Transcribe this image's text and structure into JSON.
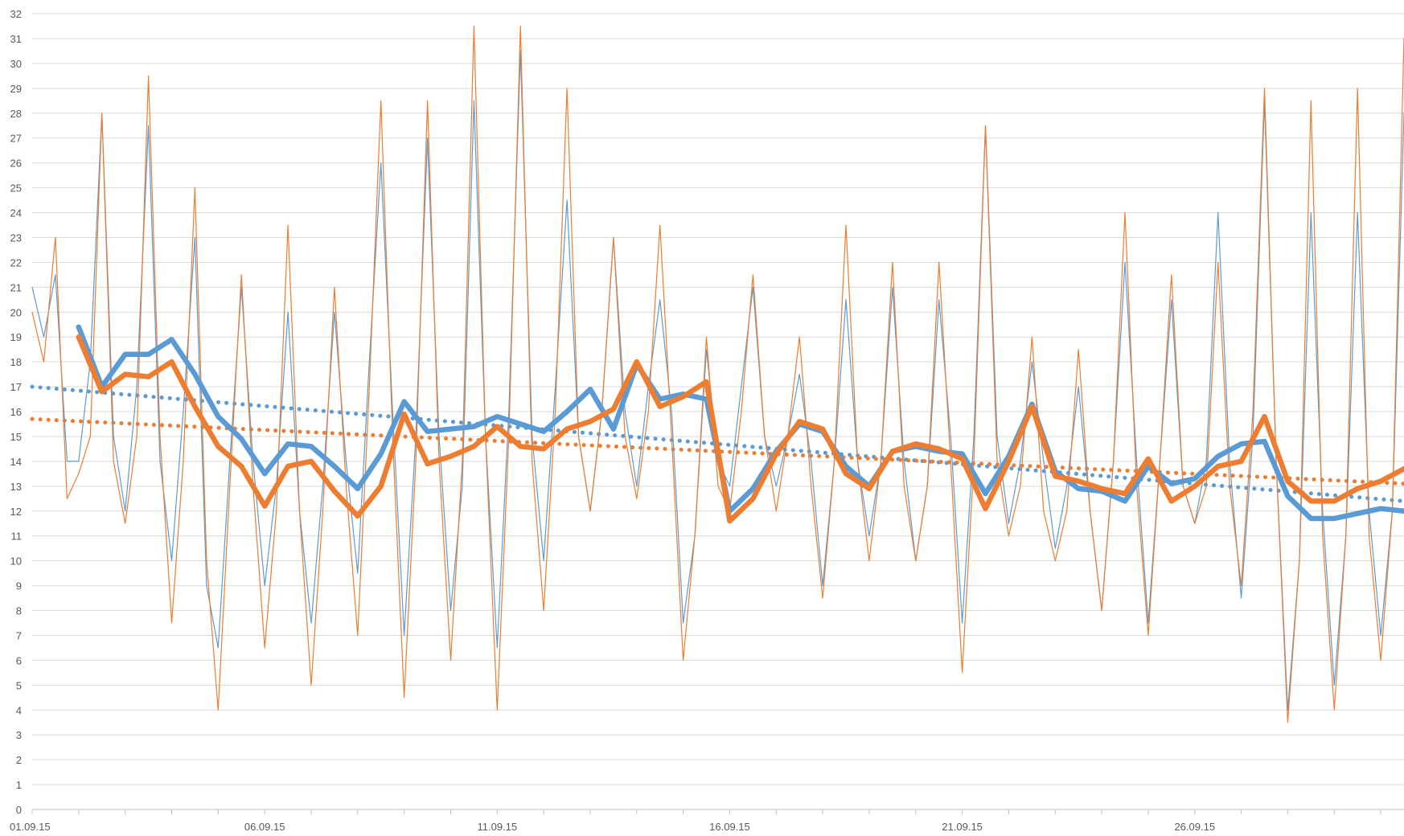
{
  "chart_data": {
    "type": "line",
    "title": "",
    "xlabel": "",
    "ylabel": "",
    "ylim": [
      0,
      32
    ],
    "y_ticks": [
      0,
      1,
      2,
      3,
      4,
      5,
      6,
      7,
      8,
      9,
      10,
      11,
      12,
      13,
      14,
      15,
      16,
      17,
      18,
      19,
      20,
      21,
      22,
      23,
      24,
      25,
      26,
      27,
      28,
      29,
      30,
      31,
      32
    ],
    "y_tick_labels": [
      "0",
      "1",
      "2",
      "3",
      "4",
      "5",
      "6",
      "7",
      "8",
      "9",
      "10",
      "11",
      "12",
      "13",
      "14",
      "15",
      "16",
      "17",
      "18",
      "19",
      "20",
      "21",
      "22",
      "23",
      "24",
      "25",
      "26",
      "27",
      "28",
      "29",
      "30",
      "31",
      "32"
    ],
    "xlim": [
      "01.09.15 00:00",
      "30.09.15 12:00"
    ],
    "x_tick_labels": [
      {
        "date": "01.09.15",
        "label": "01.09.15"
      },
      {
        "date": "06.09.15",
        "label": "06.09.15"
      },
      {
        "date": "11.09.15",
        "label": "11.09.15"
      },
      {
        "date": "16.09.15",
        "label": "16.09.15"
      },
      {
        "date": "21.09.15",
        "label": "21.09.15"
      },
      {
        "date": "26.09.15",
        "label": "26.09.15"
      }
    ],
    "grid": "horizontal",
    "legend": "none",
    "colors": {
      "blue": "#5b9bd5",
      "orange": "#ed7d31"
    },
    "series": [
      {
        "style": "thin",
        "color": "#5b9bd5",
        "x": [
          "01.09.15 00:00",
          "01.09.15 06:00",
          "01.09.15 12:00",
          "01.09.15 18:00",
          "02.09.15 00:00",
          "02.09.15 06:00",
          "02.09.15 12:00",
          "02.09.15 18:00",
          "03.09.15 00:00",
          "03.09.15 06:00",
          "03.09.15 12:00",
          "03.09.15 18:00",
          "04.09.15 00:00",
          "04.09.15 06:00",
          "04.09.15 12:00",
          "04.09.15 18:00",
          "05.09.15 00:00",
          "05.09.15 06:00",
          "05.09.15 12:00",
          "05.09.15 18:00",
          "06.09.15 00:00",
          "06.09.15 06:00",
          "06.09.15 12:00",
          "06.09.15 18:00",
          "07.09.15 00:00",
          "07.09.15 06:00",
          "07.09.15 12:00",
          "07.09.15 18:00",
          "08.09.15 00:00",
          "08.09.15 06:00",
          "08.09.15 12:00",
          "08.09.15 18:00",
          "09.09.15 00:00",
          "09.09.15 06:00",
          "09.09.15 12:00",
          "09.09.15 18:00",
          "10.09.15 00:00",
          "10.09.15 06:00",
          "10.09.15 12:00",
          "10.09.15 18:00",
          "11.09.15 00:00",
          "11.09.15 06:00",
          "11.09.15 12:00",
          "11.09.15 18:00",
          "12.09.15 00:00",
          "12.09.15 06:00",
          "12.09.15 12:00",
          "12.09.15 18:00",
          "13.09.15 00:00",
          "13.09.15 06:00",
          "13.09.15 12:00",
          "13.09.15 18:00",
          "14.09.15 00:00",
          "14.09.15 06:00",
          "14.09.15 12:00",
          "14.09.15 18:00",
          "15.09.15 00:00",
          "15.09.15 06:00",
          "15.09.15 12:00",
          "15.09.15 18:00",
          "16.09.15 00:00",
          "16.09.15 06:00",
          "16.09.15 12:00",
          "16.09.15 18:00",
          "17.09.15 00:00",
          "17.09.15 06:00",
          "17.09.15 12:00",
          "17.09.15 18:00",
          "18.09.15 00:00",
          "18.09.15 06:00",
          "18.09.15 12:00",
          "18.09.15 18:00",
          "19.09.15 00:00",
          "19.09.15 06:00",
          "19.09.15 12:00",
          "19.09.15 18:00",
          "20.09.15 00:00",
          "20.09.15 06:00",
          "20.09.15 12:00",
          "20.09.15 18:00",
          "21.09.15 00:00",
          "21.09.15 06:00",
          "21.09.15 12:00",
          "21.09.15 18:00",
          "22.09.15 00:00",
          "22.09.15 06:00",
          "22.09.15 12:00",
          "22.09.15 18:00",
          "23.09.15 00:00",
          "23.09.15 06:00",
          "23.09.15 12:00",
          "23.09.15 18:00",
          "24.09.15 00:00",
          "24.09.15 06:00",
          "24.09.15 12:00",
          "24.09.15 18:00",
          "25.09.15 00:00",
          "25.09.15 06:00",
          "25.09.15 12:00",
          "25.09.15 18:00",
          "26.09.15 00:00",
          "26.09.15 06:00",
          "26.09.15 12:00",
          "26.09.15 18:00",
          "27.09.15 00:00",
          "27.09.15 06:00",
          "27.09.15 12:00",
          "27.09.15 18:00",
          "28.09.15 00:00",
          "28.09.15 06:00",
          "28.09.15 12:00",
          "28.09.15 18:00",
          "29.09.15 00:00",
          "29.09.15 06:00",
          "29.09.15 12:00",
          "29.09.15 18:00",
          "30.09.15 00:00",
          "30.09.15 06:00",
          "30.09.15 12:00"
        ],
        "y": [
          21,
          19,
          21.5,
          14,
          14,
          18,
          28,
          15,
          12,
          17,
          27.5,
          14,
          10,
          16,
          23,
          9,
          6.5,
          14,
          21,
          14,
          9,
          13,
          20,
          12,
          7.5,
          13,
          20,
          14,
          9.5,
          18,
          26,
          16,
          7,
          15,
          27,
          15,
          8,
          13,
          28.5,
          15,
          6.5,
          16,
          30.5,
          15,
          10,
          17,
          24.5,
          15,
          12,
          16,
          23,
          16,
          13,
          17,
          20.5,
          16,
          7.5,
          11,
          18.5,
          14,
          13,
          17,
          21,
          15,
          13,
          15,
          17.5,
          14,
          9,
          14,
          20.5,
          14,
          11,
          14,
          21,
          14,
          10,
          13,
          20.5,
          15,
          7.5,
          15,
          27.5,
          15,
          11.5,
          14,
          18,
          14,
          10.5,
          13,
          17,
          12,
          8,
          14,
          22,
          14,
          7.5,
          14,
          20.5,
          13,
          11.5,
          14,
          24,
          14,
          8.5,
          15,
          28.5,
          14,
          4,
          10,
          24,
          12,
          5,
          11,
          24,
          12,
          7,
          12,
          28
        ]
      },
      {
        "style": "thin",
        "color": "#ed7d31",
        "x": [
          "01.09.15 00:00",
          "01.09.15 06:00",
          "01.09.15 12:00",
          "01.09.15 18:00",
          "02.09.15 00:00",
          "02.09.15 06:00",
          "02.09.15 12:00",
          "02.09.15 18:00",
          "03.09.15 00:00",
          "03.09.15 06:00",
          "03.09.15 12:00",
          "03.09.15 18:00",
          "04.09.15 00:00",
          "04.09.15 06:00",
          "04.09.15 12:00",
          "04.09.15 18:00",
          "05.09.15 00:00",
          "05.09.15 06:00",
          "05.09.15 12:00",
          "05.09.15 18:00",
          "06.09.15 00:00",
          "06.09.15 06:00",
          "06.09.15 12:00",
          "06.09.15 18:00",
          "07.09.15 00:00",
          "07.09.15 06:00",
          "07.09.15 12:00",
          "07.09.15 18:00",
          "08.09.15 00:00",
          "08.09.15 06:00",
          "08.09.15 12:00",
          "08.09.15 18:00",
          "09.09.15 00:00",
          "09.09.15 06:00",
          "09.09.15 12:00",
          "09.09.15 18:00",
          "10.09.15 00:00",
          "10.09.15 06:00",
          "10.09.15 12:00",
          "10.09.15 18:00",
          "11.09.15 00:00",
          "11.09.15 06:00",
          "11.09.15 12:00",
          "11.09.15 18:00",
          "12.09.15 00:00",
          "12.09.15 06:00",
          "12.09.15 12:00",
          "12.09.15 18:00",
          "13.09.15 00:00",
          "13.09.15 06:00",
          "13.09.15 12:00",
          "13.09.15 18:00",
          "14.09.15 00:00",
          "14.09.15 06:00",
          "14.09.15 12:00",
          "14.09.15 18:00",
          "15.09.15 00:00",
          "15.09.15 06:00",
          "15.09.15 12:00",
          "15.09.15 18:00",
          "16.09.15 00:00",
          "16.09.15 06:00",
          "16.09.15 12:00",
          "16.09.15 18:00",
          "17.09.15 00:00",
          "17.09.15 06:00",
          "17.09.15 12:00",
          "17.09.15 18:00",
          "18.09.15 00:00",
          "18.09.15 06:00",
          "18.09.15 12:00",
          "18.09.15 18:00",
          "19.09.15 00:00",
          "19.09.15 06:00",
          "19.09.15 12:00",
          "19.09.15 18:00",
          "20.09.15 00:00",
          "20.09.15 06:00",
          "20.09.15 12:00",
          "20.09.15 18:00",
          "21.09.15 00:00",
          "21.09.15 06:00",
          "21.09.15 12:00",
          "21.09.15 18:00",
          "22.09.15 00:00",
          "22.09.15 06:00",
          "22.09.15 12:00",
          "22.09.15 18:00",
          "23.09.15 00:00",
          "23.09.15 06:00",
          "23.09.15 12:00",
          "23.09.15 18:00",
          "24.09.15 00:00",
          "24.09.15 06:00",
          "24.09.15 12:00",
          "24.09.15 18:00",
          "25.09.15 00:00",
          "25.09.15 06:00",
          "25.09.15 12:00",
          "25.09.15 18:00",
          "26.09.15 00:00",
          "26.09.15 06:00",
          "26.09.15 12:00",
          "26.09.15 18:00",
          "27.09.15 00:00",
          "27.09.15 06:00",
          "27.09.15 12:00",
          "27.09.15 18:00",
          "28.09.15 00:00",
          "28.09.15 06:00",
          "28.09.15 12:00",
          "28.09.15 18:00",
          "29.09.15 00:00",
          "29.09.15 06:00",
          "29.09.15 12:00",
          "29.09.15 18:00",
          "30.09.15 00:00",
          "30.09.15 06:00",
          "30.09.15 12:00"
        ],
        "y": [
          20,
          18,
          23,
          12.5,
          13.5,
          15,
          28,
          14,
          11.5,
          15,
          29.5,
          15,
          7.5,
          14,
          25,
          10,
          4,
          13,
          21.5,
          13,
          6.5,
          12,
          23.5,
          12,
          5,
          12,
          21,
          13,
          7,
          17,
          28.5,
          15,
          4.5,
          14,
          28.5,
          14,
          6,
          14,
          31.5,
          15,
          4,
          15,
          31.5,
          14,
          8,
          16,
          29,
          15,
          12,
          16,
          23,
          15,
          12.5,
          16,
          23.5,
          15,
          6,
          11,
          19,
          13,
          12,
          16,
          21.5,
          15,
          12,
          15,
          19,
          13,
          8.5,
          14,
          23.5,
          14,
          10,
          14,
          22,
          13,
          10,
          13,
          22,
          14,
          5.5,
          14,
          27.5,
          14,
          11,
          13,
          19,
          12,
          10,
          12,
          18.5,
          12,
          8,
          14,
          24,
          13,
          7,
          14,
          21.5,
          13,
          11.5,
          13,
          22,
          13,
          9,
          16,
          29,
          14,
          3.5,
          10,
          28.5,
          11,
          4,
          11,
          29,
          11,
          6,
          12,
          31
        ]
      },
      {
        "style": "thick",
        "color": "#5b9bd5",
        "x": [
          "02.09.15 00:00",
          "02.09.15 12:00",
          "03.09.15 00:00",
          "03.09.15 12:00",
          "04.09.15 00:00",
          "04.09.15 12:00",
          "05.09.15 00:00",
          "05.09.15 12:00",
          "06.09.15 00:00",
          "06.09.15 12:00",
          "07.09.15 00:00",
          "07.09.15 12:00",
          "08.09.15 00:00",
          "08.09.15 12:00",
          "09.09.15 00:00",
          "09.09.15 12:00",
          "10.09.15 00:00",
          "10.09.15 12:00",
          "11.09.15 00:00",
          "11.09.15 12:00",
          "12.09.15 00:00",
          "12.09.15 12:00",
          "13.09.15 00:00",
          "13.09.15 12:00",
          "14.09.15 00:00",
          "14.09.15 12:00",
          "15.09.15 00:00",
          "15.09.15 12:00",
          "16.09.15 00:00",
          "16.09.15 12:00",
          "17.09.15 00:00",
          "17.09.15 12:00",
          "18.09.15 00:00",
          "18.09.15 12:00",
          "19.09.15 00:00",
          "19.09.15 12:00",
          "20.09.15 00:00",
          "20.09.15 12:00",
          "21.09.15 00:00",
          "21.09.15 12:00",
          "22.09.15 00:00",
          "22.09.15 12:00",
          "23.09.15 00:00",
          "23.09.15 12:00",
          "24.09.15 00:00",
          "24.09.15 12:00",
          "25.09.15 00:00",
          "25.09.15 12:00",
          "26.09.15 00:00",
          "26.09.15 12:00",
          "27.09.15 00:00",
          "27.09.15 12:00",
          "28.09.15 00:00",
          "28.09.15 12:00",
          "29.09.15 00:00",
          "29.09.15 12:00",
          "30.09.15 00:00",
          "30.09.15 12:00"
        ],
        "y": [
          19.4,
          17.0,
          18.3,
          18.3,
          18.9,
          17.5,
          15.8,
          14.9,
          13.5,
          14.7,
          14.6,
          13.8,
          12.9,
          14.3,
          16.4,
          15.2,
          15.3,
          15.4,
          15.8,
          15.5,
          15.2,
          16.0,
          16.9,
          15.3,
          17.9,
          16.5,
          16.7,
          16.5,
          12.0,
          12.9,
          14.4,
          15.5,
          15.2,
          13.8,
          13.0,
          14.4,
          14.6,
          14.4,
          14.3,
          12.7,
          14.2,
          16.3,
          13.6,
          12.9,
          12.8,
          12.4,
          13.8,
          13.1,
          13.3,
          14.2,
          14.7,
          14.8,
          12.6,
          11.7,
          11.7,
          11.9,
          12.1,
          12.0
        ]
      },
      {
        "style": "thick",
        "color": "#ed7d31",
        "x": [
          "02.09.15 00:00",
          "02.09.15 12:00",
          "03.09.15 00:00",
          "03.09.15 12:00",
          "04.09.15 00:00",
          "04.09.15 12:00",
          "05.09.15 00:00",
          "05.09.15 12:00",
          "06.09.15 00:00",
          "06.09.15 12:00",
          "07.09.15 00:00",
          "07.09.15 12:00",
          "08.09.15 00:00",
          "08.09.15 12:00",
          "09.09.15 00:00",
          "09.09.15 12:00",
          "10.09.15 00:00",
          "10.09.15 12:00",
          "11.09.15 00:00",
          "11.09.15 12:00",
          "12.09.15 00:00",
          "12.09.15 12:00",
          "13.09.15 00:00",
          "13.09.15 12:00",
          "14.09.15 00:00",
          "14.09.15 12:00",
          "15.09.15 00:00",
          "15.09.15 12:00",
          "16.09.15 00:00",
          "16.09.15 12:00",
          "17.09.15 00:00",
          "17.09.15 12:00",
          "18.09.15 00:00",
          "18.09.15 12:00",
          "19.09.15 00:00",
          "19.09.15 12:00",
          "20.09.15 00:00",
          "20.09.15 12:00",
          "21.09.15 00:00",
          "21.09.15 12:00",
          "22.09.15 00:00",
          "22.09.15 12:00",
          "23.09.15 00:00",
          "23.09.15 12:00",
          "24.09.15 00:00",
          "24.09.15 12:00",
          "25.09.15 00:00",
          "25.09.15 12:00",
          "26.09.15 00:00",
          "26.09.15 12:00",
          "27.09.15 00:00",
          "27.09.15 12:00",
          "28.09.15 00:00",
          "28.09.15 12:00",
          "29.09.15 00:00",
          "29.09.15 12:00",
          "30.09.15 00:00",
          "30.09.15 12:00"
        ],
        "y": [
          19.0,
          16.8,
          17.5,
          17.4,
          18.0,
          16.2,
          14.6,
          13.8,
          12.2,
          13.8,
          14.0,
          12.8,
          11.8,
          13.0,
          15.9,
          13.9,
          14.2,
          14.6,
          15.4,
          14.6,
          14.5,
          15.3,
          15.6,
          16.1,
          18.0,
          16.2,
          16.6,
          17.2,
          11.6,
          12.5,
          14.3,
          15.6,
          15.3,
          13.5,
          12.9,
          14.4,
          14.7,
          14.5,
          14.1,
          12.1,
          14.0,
          16.2,
          13.4,
          13.2,
          12.9,
          12.7,
          14.1,
          12.4,
          13.0,
          13.8,
          14.0,
          15.8,
          13.2,
          12.4,
          12.4,
          12.9,
          13.2,
          13.7
        ]
      },
      {
        "style": "trend-dotted",
        "color": "#5b9bd5",
        "x": [
          "01.09.15 00:00",
          "30.09.15 12:00"
        ],
        "y": [
          17.0,
          12.4
        ]
      },
      {
        "style": "trend-dotted",
        "color": "#ed7d31",
        "x": [
          "01.09.15 00:00",
          "30.09.15 12:00"
        ],
        "y": [
          15.7,
          13.1
        ]
      }
    ]
  }
}
